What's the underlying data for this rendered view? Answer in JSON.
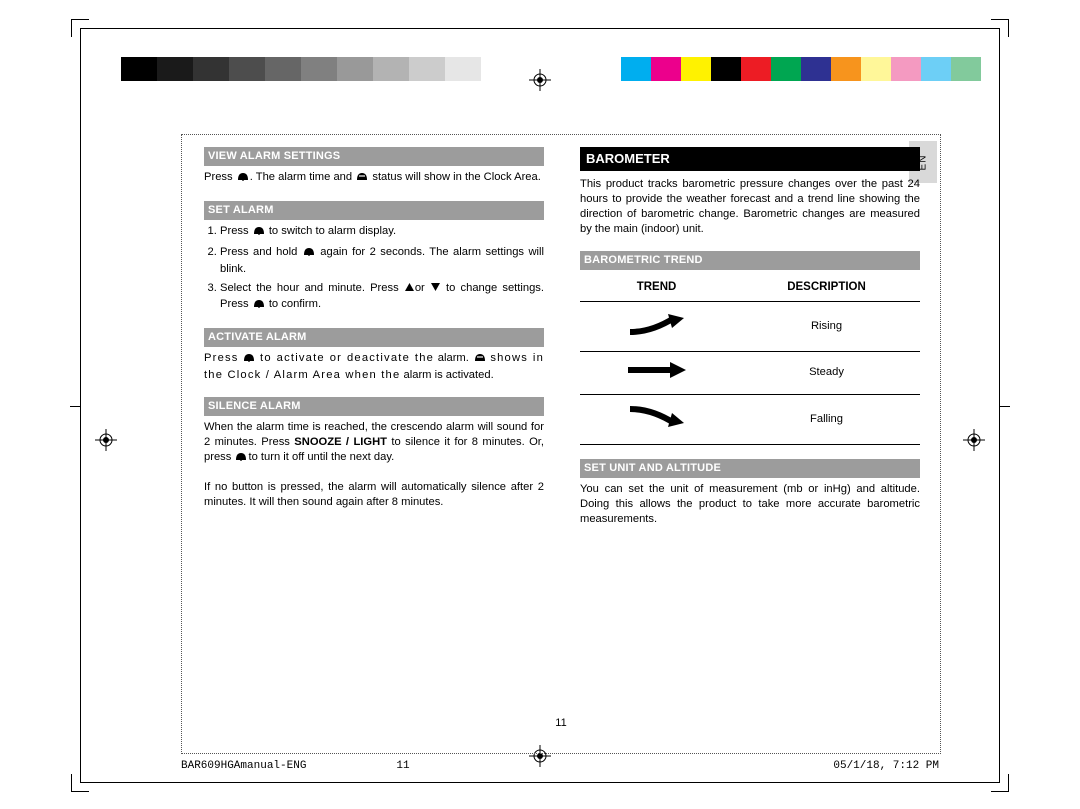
{
  "colorbar": {
    "greys": [
      "#000000",
      "#1a1a1a",
      "#333333",
      "#4d4d4d",
      "#666666",
      "#808080",
      "#999999",
      "#b3b3b3",
      "#cccccc",
      "#e6e6e6"
    ],
    "colors": [
      "#00aeef",
      "#ec008c",
      "#fff200",
      "#000000",
      "#ed1c24",
      "#00a651",
      "#2e3192",
      "#f7941d",
      "#fff799",
      "#f49ac1",
      "#6dcff6",
      "#82ca9c"
    ]
  },
  "lang_tab": "EN",
  "left_col": {
    "sec1_title": "VIEW ALARM SETTINGS",
    "sec1_p_a": "Press",
    "sec1_p_b": ". The alarm time and",
    "sec1_p_c": "status will show in the Clock Area.",
    "sec2_title": "SET ALARM",
    "sec2_li1_a": "Press",
    "sec2_li1_b": "to switch to alarm display.",
    "sec2_li2_a": "Press and hold",
    "sec2_li2_b": "again for 2 seconds. The alarm settings will blink.",
    "sec2_li3_a": "Select the hour and minute. Press",
    "sec2_li3_b": "or",
    "sec2_li3_c": "to change settings. Press",
    "sec2_li3_d": "to confirm.",
    "sec3_title": "ACTIVATE ALARM",
    "sec3_p1_a": "Press",
    "sec3_p1_b": "to activate or deactivate the",
    "sec3_p1_c": "alarm",
    "sec3_p1_d": ".",
    "sec3_p2_a": "shows in the Clock / Alarm Area when the",
    "sec3_p2_b": "alarm",
    "sec3_p2_c": "is activated.",
    "sec4_title": "SILENCE ALARM",
    "sec4_p1_a": "When the alarm  time is reached, the crescendo alarm will sound for 2 minutes. Press ",
    "sec4_p1_bold": "SNOOZE / LIGHT",
    "sec4_p1_b": " to silence it for 8 minutes. Or, press",
    "sec4_p1_c": "to turn it off until the next day.",
    "sec4_p2": "If no button is pressed, the alarm will automatically silence after 2 minutes. It will then sound again after 8 minutes."
  },
  "right_col": {
    "title": "BAROMETER",
    "intro": "This product tracks barometric pressure changes over the past 24 hours to provide the weather forecast and a trend line showing the direction of barometric change.  Barometric changes are measured by the main (indoor) unit.",
    "sec1_title": "BAROMETRIC TREND",
    "table": {
      "head_trend": "TREND",
      "head_desc": "DESCRIPTION",
      "rows": [
        {
          "arrow": "rising",
          "desc": "Rising"
        },
        {
          "arrow": "steady",
          "desc": "Steady"
        },
        {
          "arrow": "falling",
          "desc": "Falling"
        }
      ]
    },
    "sec2_title": "SET UNIT AND ALTITUDE",
    "sec2_p": "You can set the unit of measurement (mb or inHg) and altitude. Doing this allows the product to take more accurate barometric measurements."
  },
  "page_num": "11",
  "footer": {
    "filename": "BAR609HGAmanual-ENG",
    "page": "11",
    "timestamp": "05/1/18, 7:12 PM"
  }
}
